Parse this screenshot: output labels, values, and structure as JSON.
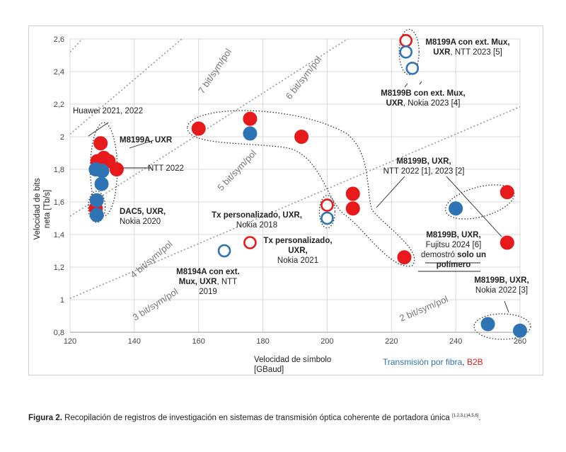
{
  "chart_data": {
    "type": "scatter",
    "title": "",
    "xlabel": "Velocidad de símbolo",
    "xlabel_unit": "[GBaud]",
    "ylabel_line1": "Velocidad de bits",
    "ylabel_line2": "neta [Tb/s]",
    "xlim": [
      120,
      260
    ],
    "ylim": [
      0.8,
      2.6
    ],
    "x_ticks": [
      "120",
      "140",
      "160",
      "180",
      "200",
      "220",
      "240",
      "260"
    ],
    "y_ticks": [
      "0,8",
      "1",
      "1,2",
      "1,4",
      "1,6",
      "1,8",
      "2",
      "2,2",
      "2,4",
      "2,6"
    ],
    "grid": "horizontal and vertical",
    "legend": {
      "fiber_label": "Transmisión por fibra",
      "sep": ",",
      "b2b_label": "B2B",
      "fiber_color": "#2e74b5",
      "b2b_color": "#e8191b"
    },
    "reference_lines": [
      {
        "label": "2 bit/sym/pol",
        "bits": 2
      },
      {
        "label": "3 bit/sym/pol",
        "bits": 3
      },
      {
        "label": "4 bit/sym/pol",
        "bits": 4
      },
      {
        "label": "5 bit/sym/pol",
        "bits": 5
      },
      {
        "label": "6 bit/sym/pol",
        "bits": 6
      },
      {
        "label": "7 bit/sym/pol",
        "bits": 7
      }
    ],
    "series": [
      {
        "type": "B2B",
        "color": "#e8191b",
        "points": [
          {
            "x": 129.5,
            "y": 1.96,
            "filled": true
          },
          {
            "x": 128.5,
            "y": 1.85,
            "filled": true
          },
          {
            "x": 130.5,
            "y": 1.87,
            "filled": true
          },
          {
            "x": 132,
            "y": 1.85,
            "filled": true
          },
          {
            "x": 134.5,
            "y": 1.8,
            "filled": true
          },
          {
            "x": 128,
            "y": 1.56,
            "filled": true
          },
          {
            "x": 160,
            "y": 2.05,
            "filled": true
          },
          {
            "x": 176,
            "y": 2.11,
            "filled": true
          },
          {
            "x": 192,
            "y": 2.0,
            "filled": true
          },
          {
            "x": 208,
            "y": 1.65,
            "filled": true
          },
          {
            "x": 208,
            "y": 1.56,
            "filled": true
          },
          {
            "x": 224,
            "y": 1.26,
            "filled": true
          },
          {
            "x": 256,
            "y": 1.66,
            "filled": true
          },
          {
            "x": 256,
            "y": 1.35,
            "filled": true
          },
          {
            "x": 176,
            "y": 1.35,
            "filled": false
          },
          {
            "x": 200,
            "y": 1.58,
            "filled": false
          },
          {
            "x": 224.5,
            "y": 2.59,
            "filled": false
          }
        ]
      },
      {
        "type": "Transmisión por fibra",
        "color": "#2e74b5",
        "points": [
          {
            "x": 128,
            "y": 1.8,
            "filled": true
          },
          {
            "x": 130,
            "y": 1.79,
            "filled": true
          },
          {
            "x": 129.8,
            "y": 1.71,
            "filled": true
          },
          {
            "x": 128.3,
            "y": 1.61,
            "filled": true
          },
          {
            "x": 128.3,
            "y": 1.52,
            "filled": true
          },
          {
            "x": 176,
            "y": 2.02,
            "filled": true
          },
          {
            "x": 240,
            "y": 1.56,
            "filled": true
          },
          {
            "x": 250,
            "y": 0.85,
            "filled": true
          },
          {
            "x": 260,
            "y": 0.81,
            "filled": true
          },
          {
            "x": 168,
            "y": 1.3,
            "filled": false
          },
          {
            "x": 200,
            "y": 1.5,
            "filled": false
          },
          {
            "x": 224.5,
            "y": 2.52,
            "filled": false
          },
          {
            "x": 226.5,
            "y": 2.42,
            "filled": false
          }
        ]
      }
    ],
    "annotations": [
      {
        "id": "huawei",
        "lines": [
          [
            {
              "t": "Huawei 2021, 2022",
              "b": false
            }
          ]
        ]
      },
      {
        "id": "m8199a-uxr",
        "lines": [
          [
            {
              "t": "M8199A, UXR",
              "b": true
            }
          ]
        ]
      },
      {
        "id": "ntt2022",
        "lines": [
          [
            {
              "t": "NTT 2022",
              "b": false
            }
          ]
        ]
      },
      {
        "id": "dac5",
        "lines": [
          [
            {
              "t": "DAC5, UXR,",
              "b": true
            }
          ],
          [
            {
              "t": "Nokia 2020",
              "b": false
            }
          ]
        ]
      },
      {
        "id": "txp2018",
        "lines": [
          [
            {
              "t": "Tx personalizado, UXR,",
              "b": true
            }
          ],
          [
            {
              "t": "Nokia 2018",
              "b": false
            }
          ]
        ]
      },
      {
        "id": "txp2021",
        "lines": [
          [
            {
              "t": "Tx personalizado,",
              "b": true
            }
          ],
          [
            {
              "t": "UXR,",
              "b": true
            }
          ],
          [
            {
              "t": "Nokia 2021",
              "b": false
            }
          ]
        ]
      },
      {
        "id": "m8194a",
        "lines": [
          [
            {
              "t": "M8194A con ext.",
              "b": true
            }
          ],
          [
            {
              "t": "Mux, ",
              "b": true
            },
            {
              "t": "UXR",
              "b": true
            },
            {
              "t": ", NTT",
              "b": false
            }
          ],
          [
            {
              "t": "2019",
              "b": false
            }
          ]
        ]
      },
      {
        "id": "m8199a-ext",
        "lines": [
          [
            {
              "t": "M8199A con ext. Mux,",
              "b": true
            }
          ],
          [
            {
              "t": "UXR",
              "b": true
            },
            {
              "t": ", NTT 2023 [5]",
              "b": false
            }
          ]
        ]
      },
      {
        "id": "m8199b-ext",
        "lines": [
          [
            {
              "t": "M8199B con ext. Mux,",
              "b": true
            }
          ],
          [
            {
              "t": "UXR",
              "b": true
            },
            {
              "t": ", Nokia 2023 [4]",
              "b": false
            }
          ]
        ]
      },
      {
        "id": "m8199b-ntt",
        "lines": [
          [
            {
              "t": "M8199B, UXR,",
              "b": true
            }
          ],
          [
            {
              "t": "NTT 2022 [1], 2023 [2]",
              "b": false
            }
          ]
        ]
      },
      {
        "id": "m8199b-fuj",
        "lines": [
          [
            {
              "t": "M8199B, UXR,",
              "b": true
            }
          ],
          [
            {
              "t": "Fujitsu 2024 [6]",
              "b": false
            }
          ],
          [
            {
              "t": "demostró ",
              "b": false
            },
            {
              "t": "solo un",
              "b": true
            }
          ],
          [
            {
              "t": "polímero",
              "b": true
            }
          ]
        ]
      },
      {
        "id": "m8199b-nokia",
        "lines": [
          [
            {
              "t": "M8199B, UXR,",
              "b": true
            }
          ],
          [
            {
              "t": "Nokia 2022 [3]",
              "b": false
            }
          ]
        ]
      }
    ]
  },
  "caption": {
    "label": "Figura 2.",
    "text": " Recopilación de registros de investigación en sistemas de transmisión óptica coherente de portadora única ",
    "refs": "[1,2,3,(;)4,5,6]",
    "end": "."
  }
}
